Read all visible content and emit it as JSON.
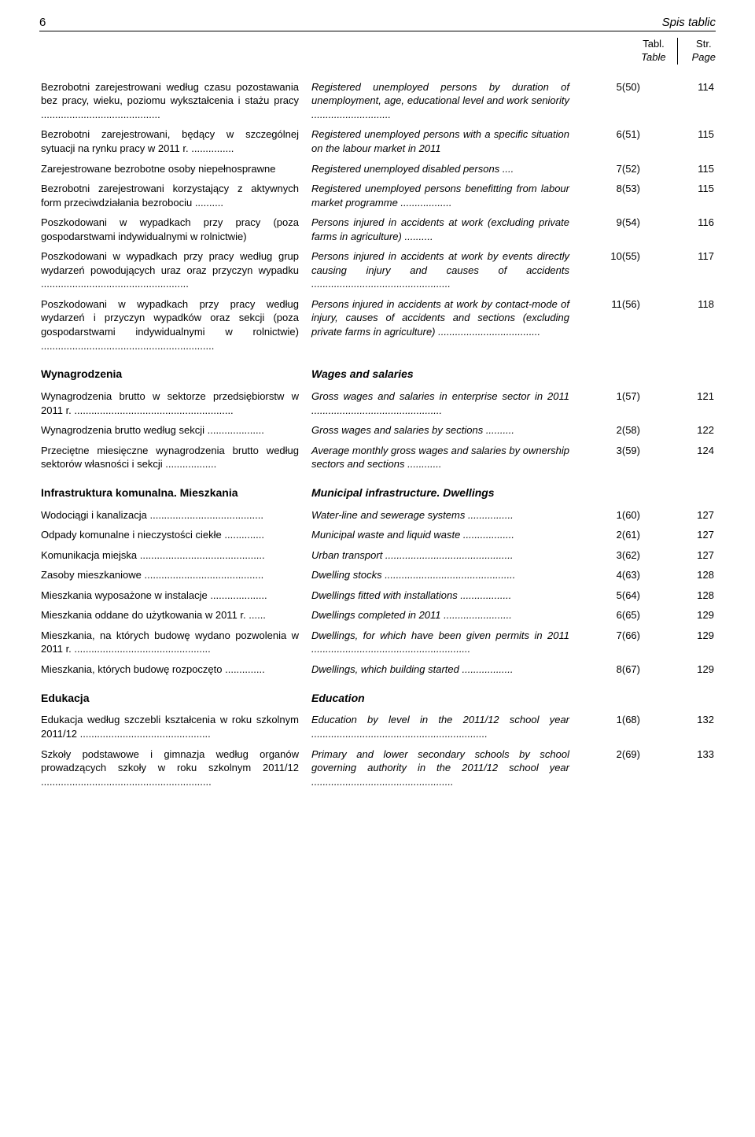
{
  "header": {
    "page_number": "6",
    "title": "Spis tablic"
  },
  "column_headers": {
    "tabl": "Tabl.",
    "table": "Table",
    "str": "Str.",
    "page": "Page"
  },
  "sections": [
    {
      "rows": [
        {
          "pl": "Bezrobotni zarejestrowani według czasu pozostawania bez pracy, wieku, poziomu wykształcenia i stażu pracy ..........................................",
          "en": "Registered unemployed persons by duration of unemployment, age, educational level and work seniority ............................",
          "tabl": "5(50)",
          "page": "114"
        },
        {
          "pl": "Bezrobotni zarejestrowani, będący w szczególnej sytuacji na rynku pracy w 2011 r. ...............",
          "en": "Registered unemployed persons with a specific situation on the labour market in 2011",
          "tabl": "6(51)",
          "page": "115"
        },
        {
          "pl": "Zarejestrowane bezrobotne osoby niepełnosprawne",
          "en": "Registered unemployed disabled persons ....",
          "tabl": "7(52)",
          "page": "115"
        },
        {
          "pl": "Bezrobotni zarejestrowani korzystający z aktywnych form przeciwdziałania bezrobociu ..........",
          "en": "Registered unemployed persons benefitting from labour market programme ..................",
          "tabl": "8(53)",
          "page": "115"
        },
        {
          "pl": "Poszkodowani w wypadkach przy pracy (poza gospodarstwami indywidualnymi w rolnictwie)",
          "en": "Persons injured in accidents at work (excluding private farms in agriculture) ..........",
          "tabl": "9(54)",
          "page": "116"
        },
        {
          "pl": "Poszkodowani w wypadkach przy pracy według grup wydarzeń powodujących uraz oraz przyczyn wypadku ....................................................",
          "en": "Persons injured in accidents at work by events directly causing injury and causes of accidents .................................................",
          "tabl": "10(55)",
          "page": "117"
        },
        {
          "pl": "Poszkodowani w wypadkach przy pracy według wydarzeń i przyczyn wypadków oraz sekcji (poza gospodarstwami indywidualnymi w rolnictwie) .............................................................",
          "en": "Persons injured in accidents at work by contact-mode of injury, causes of accidents and sections (excluding private farms in agriculture) ....................................",
          "tabl": "11(56)",
          "page": "118"
        }
      ]
    },
    {
      "heading_pl": "Wynagrodzenia",
      "heading_en": "Wages and salaries",
      "rows": [
        {
          "pl": "Wynagrodzenia brutto w sektorze przedsiębiorstw w 2011 r. ........................................................",
          "en": "Gross wages and salaries in enterprise sector in 2011 ..............................................",
          "tabl": "1(57)",
          "page": "121"
        },
        {
          "pl": "Wynagrodzenia brutto według sekcji ....................",
          "en": "Gross wages and salaries by sections ..........",
          "tabl": "2(58)",
          "page": "122"
        },
        {
          "pl": "Przeciętne miesięczne wynagrodzenia brutto według sektorów własności i sekcji ..................",
          "en": "Average monthly gross wages and salaries by ownership sectors and sections ............",
          "tabl": "3(59)",
          "page": "124"
        }
      ]
    },
    {
      "heading_pl": "Infrastruktura komunalna. Mieszkania",
      "heading_en": "Municipal infrastructure. Dwellings",
      "rows": [
        {
          "pl": "Wodociągi i kanalizacja ........................................",
          "en": "Water-line and sewerage systems ................",
          "tabl": "1(60)",
          "page": "127"
        },
        {
          "pl": "Odpady komunalne i nieczystości ciekłe ..............",
          "en": "Municipal waste and liquid waste ..................",
          "tabl": "2(61)",
          "page": "127"
        },
        {
          "pl": "Komunikacja miejska ............................................",
          "en": "Urban transport .............................................",
          "tabl": "3(62)",
          "page": "127"
        },
        {
          "pl": "Zasoby mieszkaniowe ..........................................",
          "en": "Dwelling stocks ..............................................",
          "tabl": "4(63)",
          "page": "128"
        },
        {
          "pl": "Mieszkania wyposażone w instalacje ....................",
          "en": "Dwellings fitted with installations ..................",
          "tabl": "5(64)",
          "page": "128"
        },
        {
          "pl": "Mieszkania oddane do użytkowania w 2011 r. ......",
          "en": "Dwellings completed in 2011 ........................",
          "tabl": "6(65)",
          "page": "129"
        },
        {
          "pl": "Mieszkania, na których budowę wydano pozwolenia w 2011 r. ................................................",
          "en": "Dwellings, for which have been given permits in 2011 ........................................................",
          "tabl": "7(66)",
          "page": "129"
        },
        {
          "pl": "Mieszkania, których budowę rozpoczęto ..............",
          "en": "Dwellings, which building started ..................",
          "tabl": "8(67)",
          "page": "129"
        }
      ]
    },
    {
      "heading_pl": "Edukacja",
      "heading_en": "Education",
      "rows": [
        {
          "pl": "Edukacja według szczebli kształcenia w roku szkolnym 2011/12 ..............................................",
          "en": "Education by level in the 2011/12 school year ..............................................................",
          "tabl": "1(68)",
          "page": "132"
        },
        {
          "pl": "Szkoły podstawowe i gimnazja według organów prowadzących szkoły w roku szkolnym 2011/12 ............................................................",
          "en": "Primary and lower secondary schools by school governing authority in the 2011/12 school year ..................................................",
          "tabl": "2(69)",
          "page": "133"
        }
      ]
    }
  ]
}
